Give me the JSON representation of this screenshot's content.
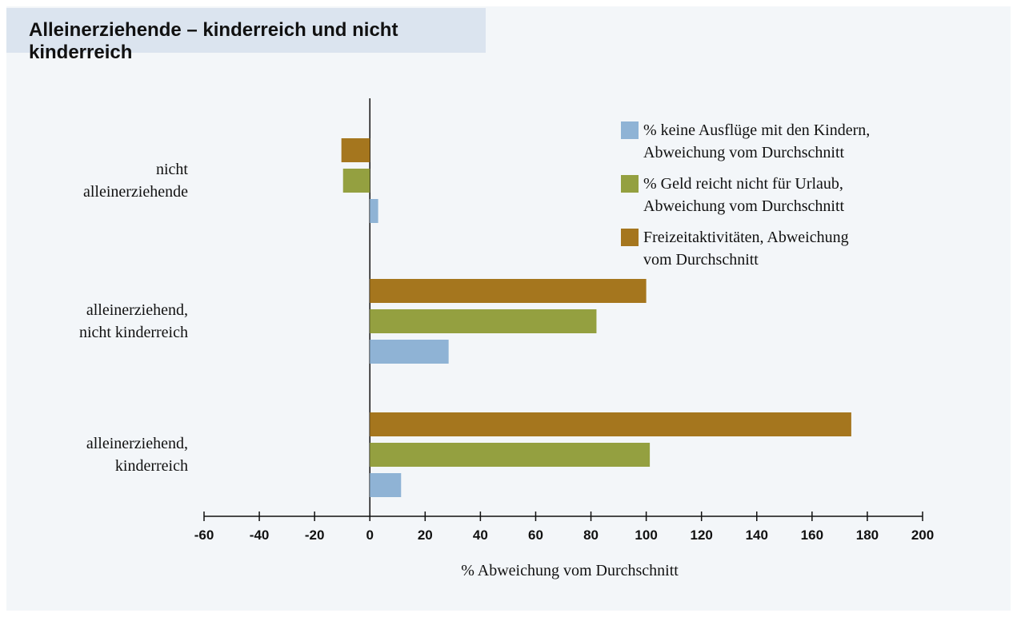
{
  "chart_data": {
    "type": "bar",
    "orientation": "horizontal",
    "title": "Alleinerziehende – kinderreich und nicht kinderreich",
    "x_label": "% Abweichung vom Durchschnitt",
    "categories": [
      "nicht\nalleinerziehende",
      "alleinerziehend,\nnicht kinderreich",
      "alleinerziehend,\nkinderreich"
    ],
    "series": [
      {
        "name": "% keine Ausflüge mit den Kindern,\nAbweichung vom Durchschnitt",
        "color": "#8fb3d5",
        "values": [
          3,
          28.5,
          11.3
        ]
      },
      {
        "name": "% Geld reicht nicht für Urlaub,\nAbweichung vom Durchschnitt",
        "color": "#94a040",
        "values": [
          -9.7,
          82,
          101.3
        ]
      },
      {
        "name": "Freizeitaktivitäten, Abweichung\nvom Durchschnitt",
        "color": "#a5761e",
        "values": [
          -10.3,
          100,
          174.2
        ]
      }
    ],
    "xlim": [
      -60,
      200
    ],
    "xticks": [
      -60,
      -40,
      -20,
      0,
      20,
      40,
      60,
      80,
      100,
      120,
      140,
      160,
      180,
      200
    ],
    "legend": "upper right",
    "grid": false
  }
}
